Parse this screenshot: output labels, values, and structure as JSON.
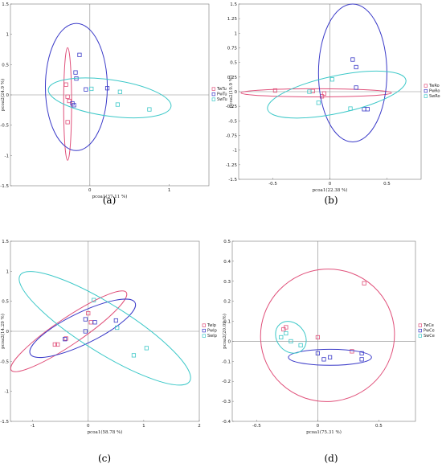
{
  "chart_data": [
    {
      "type": "scatter",
      "panel_label": "(a)",
      "xlabel": "pcoa1(37.11 %)",
      "ylabel": "pcoa2(24.9 %)",
      "xlim": [
        -1,
        1.5
      ],
      "ylim": [
        -1.5,
        1.5
      ],
      "xticks": [
        0,
        1
      ],
      "yticks": [
        -1.5,
        -1,
        -0.5,
        0,
        0.5,
        1,
        1.5
      ],
      "legend_position": "right",
      "series": [
        {
          "name": "TwTu",
          "color": "#e0507a",
          "points": [
            [
              -0.3,
              0.17
            ],
            [
              -0.28,
              -0.03
            ],
            [
              -0.26,
              -0.1
            ],
            [
              -0.28,
              -0.45
            ]
          ],
          "ellipse": {
            "cx": -0.28,
            "cy": -0.15,
            "rx": 0.05,
            "ry": 0.93,
            "angle": 0
          }
        },
        {
          "name": "PwTu",
          "color": "#3a3ac8",
          "points": [
            [
              -0.13,
              0.66
            ],
            [
              -0.18,
              0.37
            ],
            [
              -0.17,
              0.27
            ],
            [
              -0.22,
              -0.14
            ],
            [
              -0.05,
              0.09
            ],
            [
              0.22,
              0.11
            ],
            [
              -0.2,
              -0.17
            ]
          ],
          "ellipse": {
            "cx": -0.17,
            "cy": 0.13,
            "rx": 0.39,
            "ry": 1.05,
            "angle": 0
          }
        },
        {
          "name": "SwTu",
          "color": "#3cc8c8",
          "points": [
            [
              0.02,
              0.1
            ],
            [
              0.38,
              0.05
            ],
            [
              0.75,
              -0.24
            ],
            [
              0.35,
              -0.16
            ]
          ],
          "ellipse": {
            "cx": 0.25,
            "cy": -0.05,
            "rx": 0.78,
            "ry": 0.3,
            "angle": -8
          }
        }
      ]
    },
    {
      "type": "scatter",
      "panel_label": "(b)",
      "xlabel": "pcoa1(22.38 %)",
      "ylabel": "pcoa2(19.9 %)",
      "xlim": [
        -0.8,
        0.8
      ],
      "ylim": [
        -1.5,
        1.5
      ],
      "xticks": [
        -0.5,
        0,
        0.5
      ],
      "yticks": [
        -1.5,
        -1.25,
        -1,
        -0.75,
        -0.5,
        -0.25,
        0,
        0.25,
        0.5,
        0.75,
        1,
        1.25,
        1.5
      ],
      "legend_position": "right",
      "series": [
        {
          "name": "TwRo",
          "color": "#e0507a",
          "points": [
            [
              -0.48,
              0.02
            ],
            [
              -0.15,
              0.01
            ],
            [
              -0.05,
              -0.03
            ],
            [
              -0.07,
              -0.08
            ]
          ],
          "ellipse": {
            "cx": -0.12,
            "cy": -0.02,
            "rx": 0.66,
            "ry": 0.07,
            "angle": 0
          }
        },
        {
          "name": "PwRo",
          "color": "#3a3ac8",
          "points": [
            [
              0.2,
              0.55
            ],
            [
              0.23,
              0.42
            ],
            [
              0.23,
              0.07
            ],
            [
              0.33,
              -0.3
            ],
            [
              0.3,
              -0.3
            ]
          ],
          "ellipse": {
            "cx": 0.2,
            "cy": 0.32,
            "rx": 0.3,
            "ry": 1.18,
            "angle": 0
          }
        },
        {
          "name": "SwRo",
          "color": "#3cc8c8",
          "points": [
            [
              0.02,
              0.21
            ],
            [
              -0.1,
              -0.19
            ],
            [
              0.18,
              -0.29
            ],
            [
              -0.18,
              0.0
            ]
          ],
          "ellipse": {
            "cx": 0.06,
            "cy": -0.05,
            "rx": 0.62,
            "ry": 0.32,
            "angle": 12
          }
        }
      ]
    },
    {
      "type": "scatter",
      "panel_label": "(c)",
      "xlabel": "pcoa1(58.78 %)",
      "ylabel": "pcoa2(14.29 %)",
      "xlim": [
        -1.4,
        2.0
      ],
      "ylim": [
        -1.5,
        1.5
      ],
      "xticks": [
        -1,
        0,
        1,
        2
      ],
      "yticks": [
        -1.5,
        -1,
        -0.5,
        0,
        0.5,
        1,
        1.5
      ],
      "legend_position": "right",
      "series": [
        {
          "name": "TwIp",
          "color": "#e0507a",
          "points": [
            [
              -0.6,
              -0.22
            ],
            [
              -0.55,
              -0.22
            ],
            [
              0.0,
              0.3
            ],
            [
              0.05,
              0.15
            ],
            [
              -0.4,
              -0.12
            ]
          ],
          "ellipse": {
            "cx": -0.35,
            "cy": 0.0,
            "rx": 1.25,
            "ry": 0.22,
            "angle": 34
          }
        },
        {
          "name": "PwIp",
          "color": "#3a3ac8",
          "points": [
            [
              -0.42,
              -0.13
            ],
            [
              -0.05,
              0.0
            ],
            [
              -0.05,
              0.2
            ],
            [
              0.12,
              0.15
            ],
            [
              0.5,
              0.18
            ]
          ],
          "ellipse": {
            "cx": -0.1,
            "cy": 0.05,
            "rx": 1.05,
            "ry": 0.26,
            "angle": 26
          }
        },
        {
          "name": "SwIp",
          "color": "#3cc8c8",
          "points": [
            [
              0.1,
              0.52
            ],
            [
              0.52,
              0.06
            ],
            [
              0.82,
              -0.4
            ],
            [
              1.05,
              -0.28
            ]
          ],
          "ellipse": {
            "cx": 0.3,
            "cy": 0.05,
            "rx": 1.8,
            "ry": 0.4,
            "angle": -32
          }
        }
      ]
    },
    {
      "type": "scatter",
      "panel_label": "(d)",
      "xlabel": "pcoa1(75.31 %)",
      "ylabel": "pcoa2(20.09 %)",
      "xlim": [
        -0.7,
        0.8
      ],
      "ylim": [
        -0.4,
        0.5
      ],
      "xticks": [
        -0.5,
        0,
        0.5
      ],
      "yticks": [
        -0.4,
        -0.3,
        -0.2,
        -0.1,
        0,
        0.1,
        0.2,
        0.3,
        0.4,
        0.5
      ],
      "legend_position": "right",
      "series": [
        {
          "name": "TwCe",
          "color": "#e0507a",
          "points": [
            [
              0.38,
              0.29
            ],
            [
              0.28,
              -0.05
            ],
            [
              0.0,
              0.02
            ],
            [
              -0.28,
              0.06
            ],
            [
              -0.26,
              0.07
            ]
          ],
          "ellipse": {
            "cx": 0.08,
            "cy": 0.03,
            "rx": 0.55,
            "ry": 0.33,
            "angle": 25
          }
        },
        {
          "name": "PwCe",
          "color": "#3a3ac8",
          "points": [
            [
              0.36,
              -0.06
            ],
            [
              0.36,
              -0.09
            ],
            [
              0.1,
              -0.08
            ],
            [
              0.05,
              -0.09
            ],
            [
              0.0,
              -0.06
            ]
          ],
          "ellipse": {
            "cx": 0.1,
            "cy": -0.08,
            "rx": 0.34,
            "ry": 0.04,
            "angle": 0
          }
        },
        {
          "name": "SwCe",
          "color": "#3cc8c8",
          "points": [
            [
              -0.26,
              0.04
            ],
            [
              -0.3,
              0.02
            ],
            [
              -0.14,
              -0.02
            ],
            [
              -0.22,
              0.0
            ]
          ],
          "ellipse": {
            "cx": -0.22,
            "cy": 0.02,
            "rx": 0.14,
            "ry": 0.07,
            "angle": -50
          }
        }
      ]
    }
  ]
}
